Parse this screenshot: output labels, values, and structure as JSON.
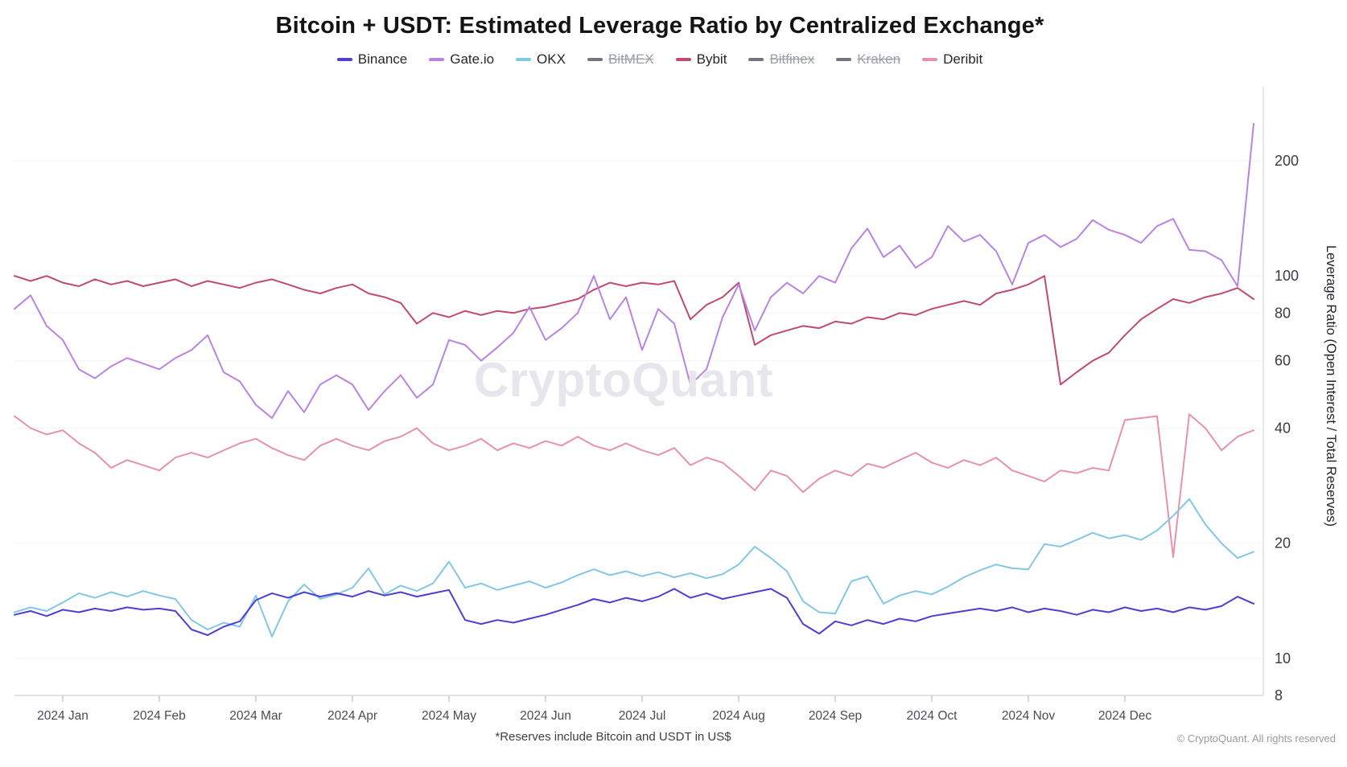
{
  "title": "Bitcoin + USDT: Estimated Leverage Ratio by Centralized Exchange*",
  "watermark": "CryptoQuant",
  "footnote": "*Reserves include Bitcoin and USDT in US$",
  "copyright": "© CryptoQuant. All rights reserved",
  "y_axis_title": "Leverage Ratio (Open Interest / Total Reserves)",
  "legend": [
    {
      "label": "Binance",
      "color": "#4c3fd1",
      "active": true
    },
    {
      "label": "Gate.io",
      "color": "#b884e3",
      "active": true
    },
    {
      "label": "OKX",
      "color": "#82c7e6",
      "active": true
    },
    {
      "label": "BitMEX",
      "color": "#70757e",
      "active": false
    },
    {
      "label": "Bybit",
      "color": "#c14a70",
      "active": true
    },
    {
      "label": "Bitfinex",
      "color": "#70757e",
      "active": false
    },
    {
      "label": "Kraken",
      "color": "#70757e",
      "active": false
    },
    {
      "label": "Deribit",
      "color": "#e891aa",
      "active": true
    }
  ],
  "chart_data": {
    "type": "line",
    "y_scale": "log",
    "ylabel": "Leverage Ratio (Open Interest / Total Reserves)",
    "y_ticks": [
      200,
      100,
      80,
      60,
      40,
      20,
      10,
      8
    ],
    "x_ticks": [
      "2024 Jan",
      "2024 Feb",
      "2024 Mar",
      "2024 Apr",
      "2024 May",
      "2024 Jun",
      "2024 Jul",
      "2024 Aug",
      "2024 Sep",
      "2024 Oct",
      "2024 Nov",
      "2024 Dec"
    ],
    "x_start": 18,
    "x_step": 20,
    "series": [
      {
        "name": "Binance",
        "color": "#4c3fd1",
        "values": [
          13.0,
          13.3,
          12.9,
          13.4,
          13.2,
          13.5,
          13.3,
          13.6,
          13.4,
          13.5,
          13.3,
          11.9,
          11.5,
          12.1,
          12.5,
          14.2,
          14.8,
          14.4,
          14.9,
          14.5,
          14.8,
          14.5,
          15.0,
          14.6,
          14.9,
          14.5,
          14.8,
          15.1,
          12.6,
          12.3,
          12.6,
          12.4,
          12.7,
          13.0,
          13.4,
          13.8,
          14.3,
          14.0,
          14.4,
          14.1,
          14.5,
          15.2,
          14.4,
          14.8,
          14.3,
          14.6,
          14.9,
          15.2,
          14.4,
          12.3,
          11.6,
          12.5,
          12.2,
          12.6,
          12.3,
          12.7,
          12.5,
          12.9,
          13.1,
          13.3,
          13.5,
          13.3,
          13.6,
          13.2,
          13.5,
          13.3,
          13.0,
          13.4,
          13.2,
          13.6,
          13.3,
          13.5,
          13.2,
          13.6,
          13.4,
          13.7,
          14.5,
          13.9
        ]
      },
      {
        "name": "Gate.io",
        "color": "#b884e3",
        "values": [
          82,
          89,
          74,
          68,
          57,
          54,
          58,
          61,
          59,
          57,
          61,
          64,
          70,
          56,
          53,
          46,
          42.5,
          50,
          44,
          52,
          55,
          52,
          44.6,
          50,
          55,
          48,
          52,
          68,
          66,
          60,
          65,
          71,
          83,
          68,
          73,
          80,
          100,
          77,
          88,
          64,
          82,
          75,
          52,
          57,
          78,
          95,
          72,
          88,
          96,
          90,
          100,
          96,
          118,
          133,
          112,
          120,
          105,
          112,
          135,
          123,
          128,
          116,
          95,
          122,
          128,
          119,
          125,
          140,
          132,
          128,
          122,
          135,
          141,
          117,
          116,
          110,
          94,
          250
        ]
      },
      {
        "name": "OKX",
        "color": "#82c7e6",
        "values": [
          13.2,
          13.6,
          13.3,
          14.0,
          14.8,
          14.4,
          14.9,
          14.5,
          15.0,
          14.6,
          14.3,
          12.6,
          11.9,
          12.4,
          12.1,
          14.6,
          11.4,
          14.1,
          15.6,
          14.3,
          14.7,
          15.3,
          17.2,
          14.7,
          15.5,
          15.0,
          15.7,
          17.9,
          15.3,
          15.7,
          15.1,
          15.5,
          15.9,
          15.3,
          15.8,
          16.5,
          17.1,
          16.5,
          16.9,
          16.4,
          16.8,
          16.3,
          16.7,
          16.2,
          16.6,
          17.6,
          19.6,
          18.3,
          16.9,
          14.1,
          13.2,
          13.1,
          15.9,
          16.4,
          13.9,
          14.6,
          15.0,
          14.7,
          15.4,
          16.3,
          17.0,
          17.6,
          17.2,
          17.1,
          19.9,
          19.6,
          20.4,
          21.3,
          20.6,
          21.0,
          20.4,
          21.6,
          23.6,
          26.1,
          22.4,
          20.0,
          18.3,
          19.0
        ]
      },
      {
        "name": "Bybit",
        "color": "#c14a70",
        "values": [
          100,
          97,
          100,
          96,
          94,
          98,
          95,
          97,
          94,
          96,
          98,
          94,
          97,
          95,
          93,
          96,
          98,
          95,
          92,
          90,
          93,
          95,
          90,
          88,
          85,
          75,
          80,
          78,
          81,
          79,
          81,
          80,
          82,
          83,
          85,
          87,
          92,
          96,
          94,
          96,
          95,
          97,
          77,
          84,
          88,
          96,
          66,
          70,
          72,
          74,
          73,
          76,
          75,
          78,
          77,
          80,
          79,
          82,
          84,
          86,
          84,
          90,
          92,
          95,
          100,
          52,
          56,
          60,
          63,
          70,
          77,
          82,
          87,
          85,
          88,
          90,
          93,
          87
        ]
      },
      {
        "name": "Deribit",
        "color": "#e891aa",
        "values": [
          43,
          40,
          38.5,
          39.5,
          36.5,
          34.5,
          31.5,
          33,
          32,
          31,
          33.5,
          34.5,
          33.5,
          35,
          36.5,
          37.5,
          35.5,
          34,
          33,
          36,
          37.5,
          36,
          35,
          37,
          38,
          40,
          36.5,
          35,
          36,
          37.5,
          35,
          36.5,
          35.5,
          37,
          36,
          38,
          36,
          35,
          36.5,
          35,
          34,
          35.5,
          32,
          33.5,
          32.5,
          30,
          27.5,
          31,
          30,
          27.2,
          29.5,
          31,
          30,
          32.3,
          31.5,
          33,
          34.5,
          32.5,
          31.5,
          33,
          32,
          33.5,
          31,
          30,
          29,
          31,
          30.5,
          31.5,
          31,
          42,
          42.5,
          43,
          18.4,
          43.5,
          40,
          35,
          38,
          39.5
        ]
      }
    ]
  }
}
